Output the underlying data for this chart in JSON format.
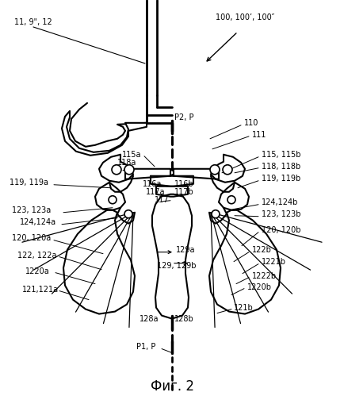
{
  "background_color": "#ffffff",
  "line_color": "#000000",
  "fig_width": 4.34,
  "fig_height": 4.99,
  "dpi": 100,
  "labels": {
    "top_left": "11, 9\", 12",
    "top_right": "100, 100', 100\"",
    "p2p": "P2, P",
    "ref110": "110",
    "ref111": "111",
    "ref115a": "115a",
    "ref115_115b": "115, 115b",
    "ref118a": "118a",
    "ref118_118b": "118, 118b",
    "ref119_119a": "119, 119a",
    "ref119_119b": "119, 119b",
    "ref116a": "116a",
    "ref116b": "116b",
    "ref117": "117",
    "ref117a": "117a",
    "ref117b": "117b",
    "ref123_123a": "123, 123a",
    "ref123_123b": "123, 123b",
    "ref124_124a": "124,124a",
    "ref124_124b": "124,124b",
    "ref120_120a": "120, 120a",
    "ref120_120b": "120, 120b",
    "ref122_122a": "122, 122a",
    "ref122b": "122b",
    "ref1220a": "1220a",
    "ref1221b": "1221b",
    "ref1222b": "1222b",
    "ref1220b": "1220b",
    "ref121_121a": "121,121a",
    "ref121b": "121b",
    "ref129a": "129a",
    "ref129_129b": "129, 129b",
    "ref128a": "128a",
    "ref128b": "128b",
    "ref_p1p": "P1, P",
    "fig_caption": "Фиг. 2"
  },
  "xlim": [
    0,
    434
  ],
  "ylim": [
    0,
    499
  ]
}
